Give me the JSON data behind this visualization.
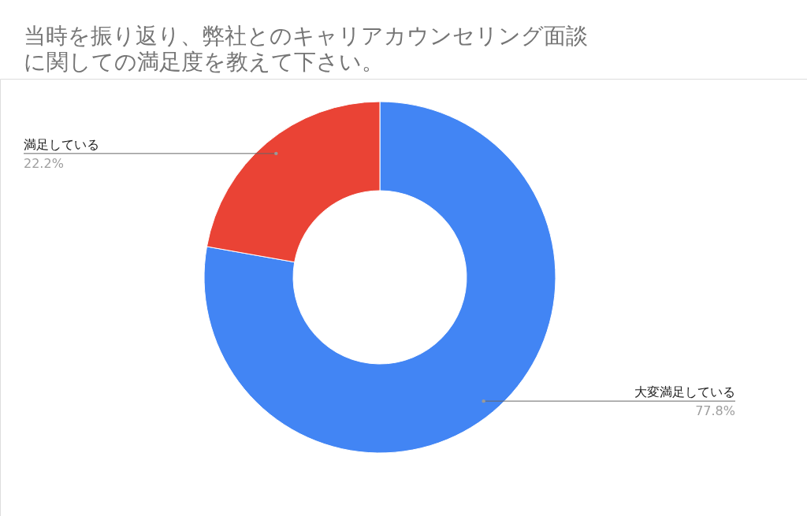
{
  "chart_data": {
    "type": "donut",
    "title": "当時を振り返り、弊社とのキャリアカウンセリング面談に関しての満足度を教えて下さい。",
    "categories": [
      "大変満足している",
      "満足している"
    ],
    "values": [
      77.8,
      22.2
    ],
    "colors": [
      "#4285f4",
      "#ea4335"
    ],
    "value_labels": [
      "77.8%",
      "22.2%"
    ]
  }
}
